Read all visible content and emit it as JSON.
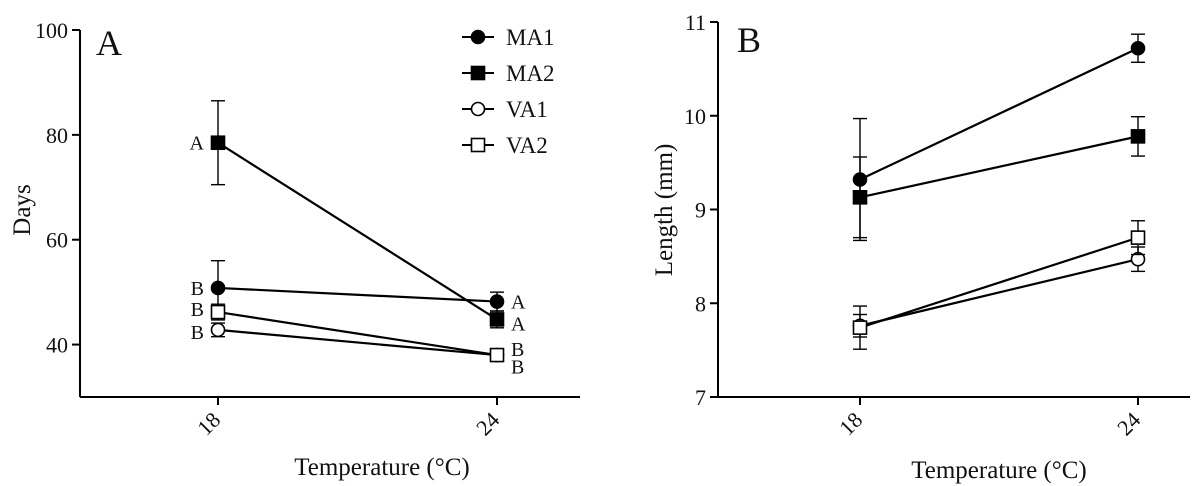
{
  "chart_data": [
    {
      "type": "line",
      "panel_label": "A",
      "xlabel": "Temperature (°C)",
      "ylabel": "Days",
      "x": [
        18,
        24
      ],
      "x_tick_labels": [
        "18",
        "24"
      ],
      "ylim": [
        30,
        100
      ],
      "y_ticks": [
        40,
        60,
        80,
        100
      ],
      "y_tick_labels": [
        "40",
        "60",
        "80",
        "100"
      ],
      "legend": {
        "placement": "top-right",
        "entries": [
          {
            "name": "MA1",
            "marker": "circle",
            "fill": "#000000"
          },
          {
            "name": "MA2",
            "marker": "square",
            "fill": "#000000"
          },
          {
            "name": "VA1",
            "marker": "circle",
            "fill": "#ffffff"
          },
          {
            "name": "VA2",
            "marker": "square",
            "fill": "#ffffff"
          }
        ]
      },
      "series": [
        {
          "name": "MA1",
          "marker": "circle",
          "fill": "#000000",
          "values": [
            50.8,
            48.2
          ],
          "err": [
            5.2,
            1.8
          ]
        },
        {
          "name": "MA2",
          "marker": "square",
          "fill": "#000000",
          "values": [
            78.5,
            44.8
          ],
          "err": [
            8.0,
            1.6
          ]
        },
        {
          "name": "VA1",
          "marker": "circle",
          "fill": "#ffffff",
          "values": [
            42.8,
            38.0
          ],
          "err": [
            1.3,
            0.8
          ]
        },
        {
          "name": "VA2",
          "marker": "square",
          "fill": "#ffffff",
          "values": [
            46.2,
            38.0
          ],
          "err": [
            1.5,
            0.8
          ]
        }
      ],
      "annotations": [
        {
          "text": "A",
          "x": 18,
          "y": 78.5,
          "side": "left"
        },
        {
          "text": "B",
          "x": 18,
          "y": 50.8,
          "side": "left"
        },
        {
          "text": "B",
          "x": 18,
          "y": 46.8,
          "side": "left"
        },
        {
          "text": "B",
          "x": 18,
          "y": 42.4,
          "side": "left"
        },
        {
          "text": "A",
          "x": 24,
          "y": 48.2,
          "side": "right"
        },
        {
          "text": "A",
          "x": 24,
          "y": 44.0,
          "side": "right"
        },
        {
          "text": "B",
          "x": 24,
          "y": 39.2,
          "side": "right"
        },
        {
          "text": "B",
          "x": 24,
          "y": 35.8,
          "side": "right"
        }
      ]
    },
    {
      "type": "line",
      "panel_label": "B",
      "xlabel": "Temperature (°C)",
      "ylabel": "Length (mm)",
      "x": [
        18,
        24
      ],
      "x_tick_labels": [
        "18",
        "24"
      ],
      "ylim": [
        7,
        11
      ],
      "y_ticks": [
        7,
        8,
        9,
        10,
        11
      ],
      "y_tick_labels": [
        "7",
        "8",
        "9",
        "10",
        "11"
      ],
      "series": [
        {
          "name": "MA1",
          "marker": "circle",
          "fill": "#000000",
          "values": [
            9.32,
            10.72
          ],
          "err": [
            0.65,
            0.15
          ]
        },
        {
          "name": "MA2",
          "marker": "square",
          "fill": "#000000",
          "values": [
            9.13,
            9.78
          ],
          "err": [
            0.43,
            0.21
          ]
        },
        {
          "name": "VA1",
          "marker": "circle",
          "fill": "#ffffff",
          "values": [
            7.76,
            8.47
          ],
          "err": [
            0.12,
            0.13
          ]
        },
        {
          "name": "VA2",
          "marker": "square",
          "fill": "#ffffff",
          "values": [
            7.74,
            8.7
          ],
          "err": [
            0.23,
            0.18
          ]
        }
      ]
    }
  ]
}
